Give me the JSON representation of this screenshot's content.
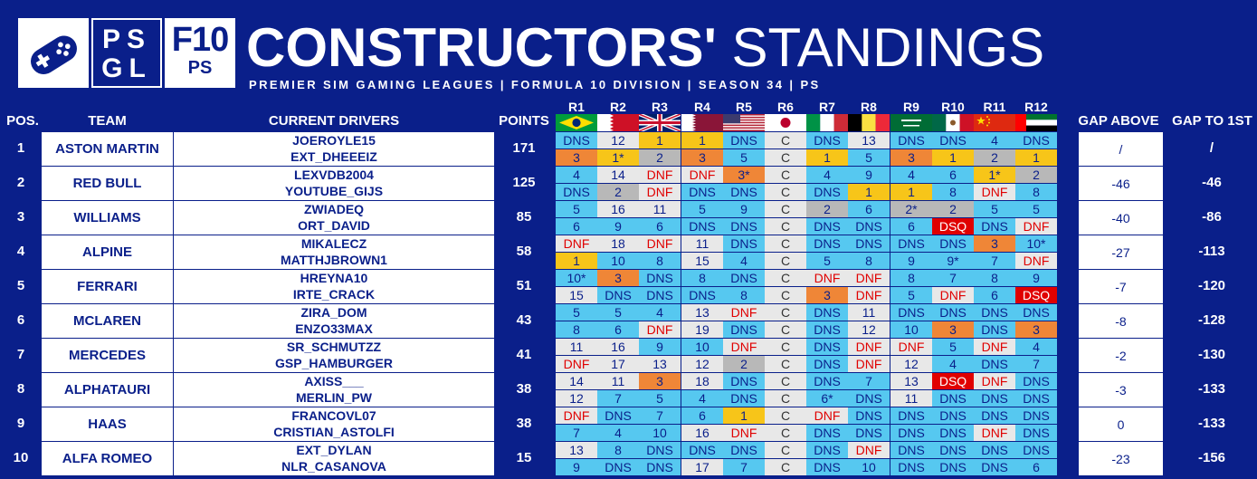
{
  "header": {
    "title_bold": "CONSTRUCTORS'",
    "title_light": "STANDINGS",
    "subtitle": "PREMIER SIM GAMING LEAGUES | FORMULA 10 DIVISION | SEASON 34 | PS",
    "logo_psgl_top": "PS",
    "logo_psgl_bottom": "GL",
    "logo_f10_big": "F10",
    "logo_f10_small": "PS",
    "logo_icon": "gamepad-icon"
  },
  "columns": {
    "pos": "POS.",
    "team": "TEAM",
    "drivers": "CURRENT DRIVERS",
    "points": "POINTS",
    "gap_above": "GAP ABOVE",
    "gap_first": "GAP TO 1ST"
  },
  "rounds": [
    {
      "label": "R1",
      "flag": "brazil-flag-icon"
    },
    {
      "label": "R2",
      "flag": "bahrain-flag-icon"
    },
    {
      "label": "R3",
      "flag": "uk-flag-icon"
    },
    {
      "label": "R4",
      "flag": "qatar-flag-icon"
    },
    {
      "label": "R5",
      "flag": "usa-flag-icon"
    },
    {
      "label": "R6",
      "flag": "japan-flag-icon"
    },
    {
      "label": "R7",
      "flag": "italy-flag-icon"
    },
    {
      "label": "R8",
      "flag": "belgium-flag-icon"
    },
    {
      "label": "R9",
      "flag": "saudi-flag-icon"
    },
    {
      "label": "R10",
      "flag": "mexico-flag-icon"
    },
    {
      "label": "R11",
      "flag": "china-flag-icon"
    },
    {
      "label": "R12",
      "flag": "uae-flag-icon"
    }
  ],
  "status_colors": {
    "dns": "#56c8f0",
    "dnf_text": "#e00000",
    "p1": "#f7c519",
    "p2": "#b8b8b8",
    "p3": "#ef8637",
    "dsq": "#e00000",
    "background": "#0a1f8a"
  },
  "teams": [
    {
      "pos": "1",
      "team": "ASTON MARTIN",
      "drivers": [
        "JOEROYLE15",
        "EXT_DHEEEIZ"
      ],
      "points": "171",
      "gap_above": "/",
      "gap_first": "/",
      "results": [
        [
          "DNS",
          "12",
          "1",
          "1",
          "DNS",
          "C",
          "DNS",
          "13",
          "DNS",
          "DNS",
          "4",
          "DNS"
        ],
        [
          "3",
          "1*",
          "2",
          "3",
          "5",
          "C",
          "1",
          "5",
          "3",
          "1",
          "2",
          "1"
        ]
      ]
    },
    {
      "pos": "2",
      "team": "RED BULL",
      "drivers": [
        "LEXVDB2004",
        "YOUTUBE_GIJS"
      ],
      "points": "125",
      "gap_above": "-46",
      "gap_first": "-46",
      "results": [
        [
          "4",
          "14",
          "DNF",
          "DNF",
          "3*",
          "C",
          "4",
          "9",
          "4",
          "6",
          "1*",
          "2"
        ],
        [
          "DNS",
          "2",
          "DNF",
          "DNS",
          "DNS",
          "C",
          "DNS",
          "1",
          "1",
          "8",
          "DNF",
          "8"
        ]
      ]
    },
    {
      "pos": "3",
      "team": "WILLIAMS",
      "drivers": [
        "ZWIADEQ",
        "ORT_DAVID"
      ],
      "points": "85",
      "gap_above": "-40",
      "gap_first": "-86",
      "results": [
        [
          "5",
          "16",
          "11",
          "5",
          "9",
          "C",
          "2",
          "6",
          "2*",
          "2",
          "5",
          "5"
        ],
        [
          "6",
          "9",
          "6",
          "DNS",
          "DNS",
          "C",
          "DNS",
          "DNS",
          "6",
          "DSQ",
          "DNS",
          "DNF"
        ]
      ]
    },
    {
      "pos": "4",
      "team": "ALPINE",
      "drivers": [
        "MIKALECZ",
        "MATTHJBROWN1"
      ],
      "points": "58",
      "gap_above": "-27",
      "gap_first": "-113",
      "results": [
        [
          "DNF",
          "18",
          "DNF",
          "11",
          "DNS",
          "C",
          "DNS",
          "DNS",
          "DNS",
          "DNS",
          "3",
          "10*"
        ],
        [
          "1",
          "10",
          "8",
          "15",
          "4",
          "C",
          "5",
          "8",
          "9",
          "9*",
          "7",
          "DNF"
        ]
      ]
    },
    {
      "pos": "5",
      "team": "FERRARI",
      "drivers": [
        "HREYNA10",
        "IRTE_CRACK"
      ],
      "points": "51",
      "gap_above": "-7",
      "gap_first": "-120",
      "results": [
        [
          "10*",
          "3",
          "DNS",
          "8",
          "DNS",
          "C",
          "DNF",
          "DNF",
          "8",
          "7",
          "8",
          "9"
        ],
        [
          "15",
          "DNS",
          "DNS",
          "DNS",
          "8",
          "C",
          "3",
          "DNF",
          "5",
          "DNF",
          "6",
          "DSQ"
        ]
      ]
    },
    {
      "pos": "6",
      "team": "MCLAREN",
      "drivers": [
        "ZIRA_DOM",
        "ENZO33MAX"
      ],
      "points": "43",
      "gap_above": "-8",
      "gap_first": "-128",
      "results": [
        [
          "5",
          "5",
          "4",
          "13",
          "DNF",
          "C",
          "DNS",
          "11",
          "DNS",
          "DNS",
          "DNS",
          "DNS"
        ],
        [
          "8",
          "6",
          "DNF",
          "19",
          "DNS",
          "C",
          "DNS",
          "12",
          "10",
          "3",
          "DNS",
          "3"
        ]
      ]
    },
    {
      "pos": "7",
      "team": "MERCEDES",
      "drivers": [
        "SR_SCHMUTZZ",
        "GSP_HAMBURGER"
      ],
      "points": "41",
      "gap_above": "-2",
      "gap_first": "-130",
      "results": [
        [
          "11",
          "16",
          "9",
          "10",
          "DNF",
          "C",
          "DNS",
          "DNF",
          "DNF",
          "5",
          "DNF",
          "4"
        ],
        [
          "DNF",
          "17",
          "13",
          "12",
          "2",
          "C",
          "DNS",
          "DNF",
          "12",
          "4",
          "DNS",
          "7"
        ]
      ]
    },
    {
      "pos": "8",
      "team": "ALPHATAURI",
      "drivers": [
        "AXISS___",
        "MERLIN_PW"
      ],
      "points": "38",
      "gap_above": "-3",
      "gap_first": "-133",
      "results": [
        [
          "14",
          "11",
          "3",
          "18",
          "DNS",
          "C",
          "DNS",
          "7",
          "13",
          "DSQ",
          "DNF",
          "DNS"
        ],
        [
          "12",
          "7",
          "5",
          "4",
          "DNS",
          "C",
          "6*",
          "DNS",
          "11",
          "DNS",
          "DNS",
          "DNS"
        ]
      ]
    },
    {
      "pos": "9",
      "team": "HAAS",
      "drivers": [
        "FRANCOVL07",
        "CRISTIAN_ASTOLFI"
      ],
      "points": "38",
      "gap_above": "0",
      "gap_first": "-133",
      "results": [
        [
          "DNF",
          "DNS",
          "7",
          "6",
          "1",
          "C",
          "DNF",
          "DNS",
          "DNS",
          "DNS",
          "DNS",
          "DNS"
        ],
        [
          "7",
          "4",
          "10",
          "16",
          "DNF",
          "C",
          "DNS",
          "DNS",
          "DNS",
          "DNS",
          "DNF",
          "DNS"
        ]
      ]
    },
    {
      "pos": "10",
      "team": "ALFA ROMEO",
      "drivers": [
        "EXT_DYLAN",
        "NLR_CASANOVA"
      ],
      "points": "15",
      "gap_above": "-23",
      "gap_first": "-156",
      "results": [
        [
          "13",
          "8",
          "DNS",
          "DNS",
          "DNS",
          "C",
          "DNS",
          "DNF",
          "DNS",
          "DNS",
          "DNS",
          "DNS"
        ],
        [
          "9",
          "DNS",
          "DNS",
          "17",
          "7",
          "C",
          "DNS",
          "10",
          "DNS",
          "DNS",
          "DNS",
          "6"
        ]
      ]
    }
  ]
}
